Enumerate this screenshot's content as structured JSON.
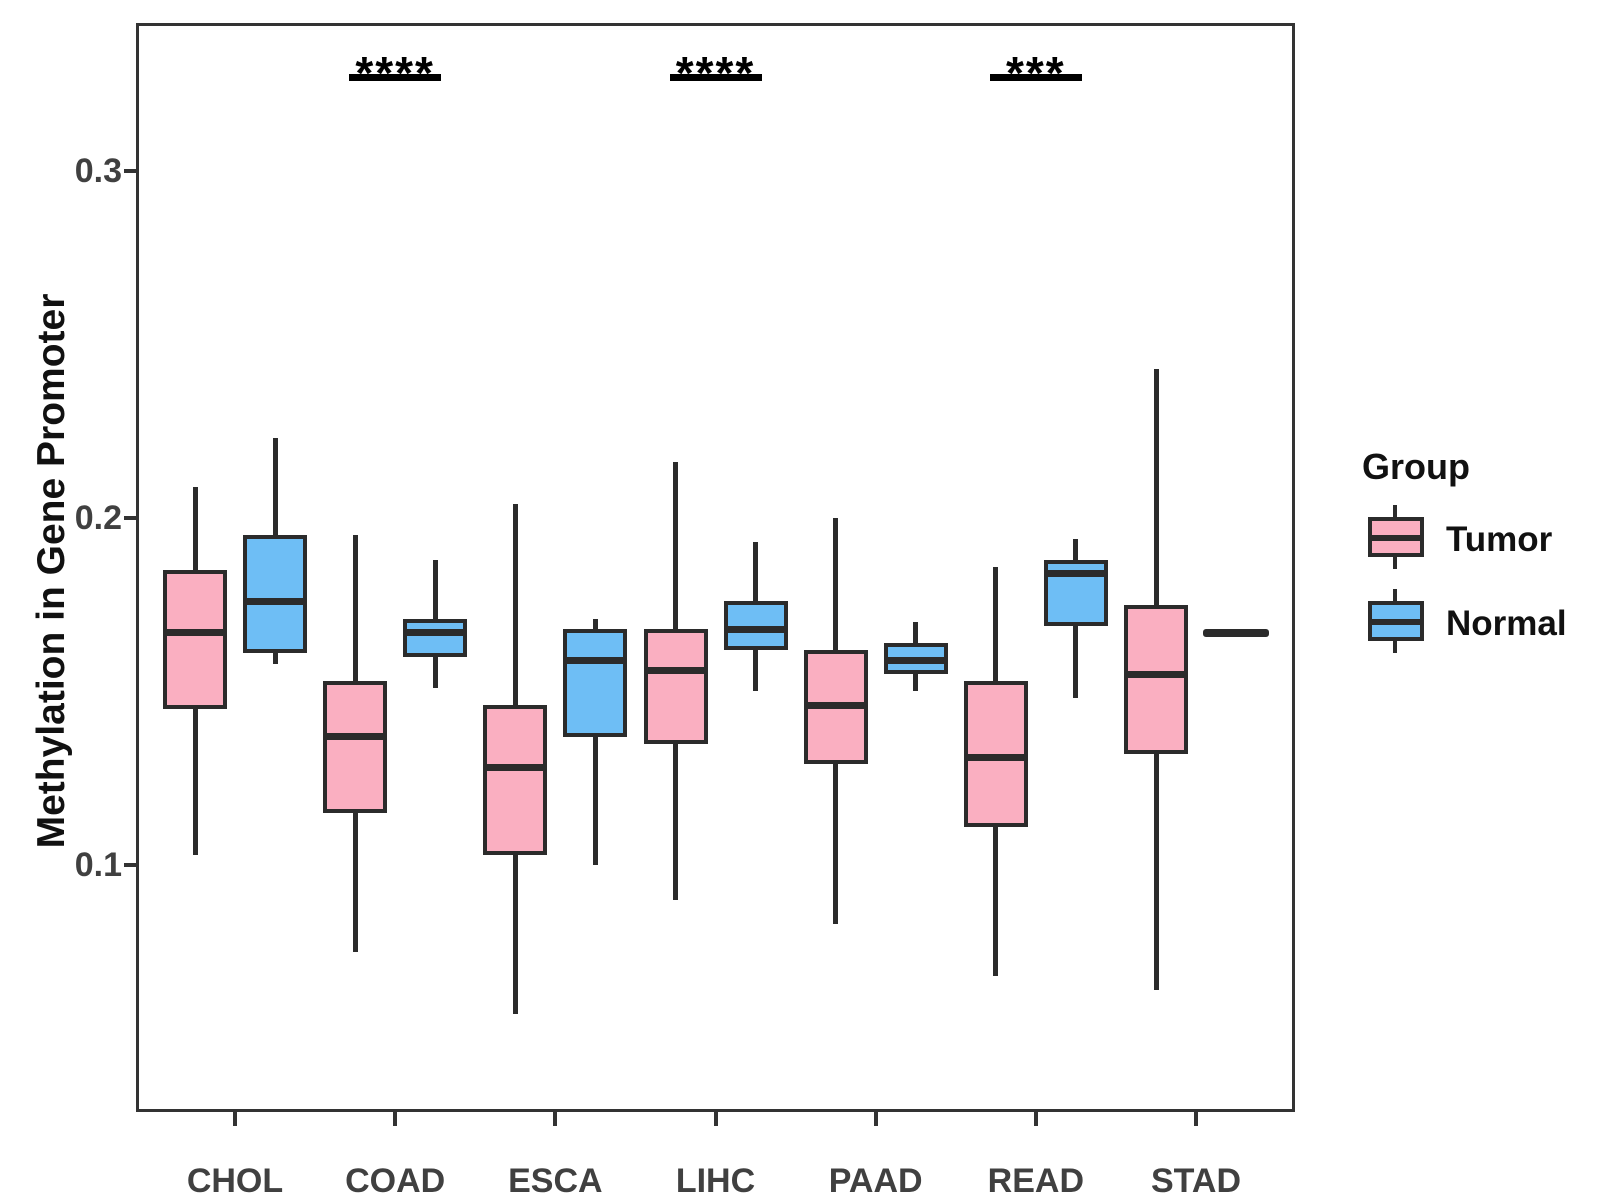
{
  "y_axis": {
    "title": "Methylation in Gene Promoter",
    "tick_labels": [
      "0.1",
      "0.2",
      "0.3"
    ]
  },
  "x_axis": {
    "categories": [
      "CHOL",
      "COAD",
      "ESCA",
      "LIHC",
      "PAAD",
      "READ",
      "STAD"
    ]
  },
  "legend": {
    "title": "Group",
    "items": [
      {
        "label": "Tumor",
        "color": "#FAAFC1"
      },
      {
        "label": "Normal",
        "color": "#6EBEF5"
      }
    ]
  },
  "annotations": [
    {
      "category": "COAD",
      "stars": "****"
    },
    {
      "category": "LIHC",
      "stars": "****"
    },
    {
      "category": "READ",
      "stars": "***"
    }
  ],
  "chart_data": {
    "type": "boxplot",
    "title": "",
    "xlabel": "",
    "ylabel": "Methylation in Gene Promoter",
    "categories": [
      "CHOL",
      "COAD",
      "ESCA",
      "LIHC",
      "PAAD",
      "READ",
      "STAD"
    ],
    "ylim": [
      0.03,
      0.342
    ],
    "yticks": [
      0.1,
      0.2,
      0.3
    ],
    "grid": false,
    "legend_position": "right",
    "series": [
      {
        "name": "Tumor",
        "color": "#FAAFC1",
        "boxes": [
          {
            "category": "CHOL",
            "low": 0.103,
            "q1": 0.145,
            "median": 0.167,
            "q3": 0.185,
            "high": 0.209
          },
          {
            "category": "COAD",
            "low": 0.075,
            "q1": 0.115,
            "median": 0.137,
            "q3": 0.153,
            "high": 0.195
          },
          {
            "category": "ESCA",
            "low": 0.057,
            "q1": 0.103,
            "median": 0.128,
            "q3": 0.146,
            "high": 0.204
          },
          {
            "category": "LIHC",
            "low": 0.09,
            "q1": 0.135,
            "median": 0.156,
            "q3": 0.168,
            "high": 0.216
          },
          {
            "category": "PAAD",
            "low": 0.083,
            "q1": 0.129,
            "median": 0.146,
            "q3": 0.162,
            "high": 0.2
          },
          {
            "category": "READ",
            "low": 0.068,
            "q1": 0.111,
            "median": 0.131,
            "q3": 0.153,
            "high": 0.186
          },
          {
            "category": "STAD",
            "low": 0.064,
            "q1": 0.132,
            "median": 0.155,
            "q3": 0.175,
            "high": 0.243
          }
        ]
      },
      {
        "name": "Normal",
        "color": "#6EBEF5",
        "boxes": [
          {
            "category": "CHOL",
            "low": 0.158,
            "q1": 0.161,
            "median": 0.176,
            "q3": 0.195,
            "high": 0.223
          },
          {
            "category": "COAD",
            "low": 0.151,
            "q1": 0.16,
            "median": 0.167,
            "q3": 0.171,
            "high": 0.188
          },
          {
            "category": "ESCA",
            "low": 0.1,
            "q1": 0.137,
            "median": 0.159,
            "q3": 0.168,
            "high": 0.171
          },
          {
            "category": "LIHC",
            "low": 0.15,
            "q1": 0.162,
            "median": 0.168,
            "q3": 0.176,
            "high": 0.193
          },
          {
            "category": "PAAD",
            "low": 0.15,
            "q1": 0.155,
            "median": 0.159,
            "q3": 0.164,
            "high": 0.17
          },
          {
            "category": "READ",
            "low": 0.148,
            "q1": 0.169,
            "median": 0.184,
            "q3": 0.188,
            "high": 0.194
          },
          {
            "category": "STAD",
            "single_value": 0.167
          }
        ]
      }
    ],
    "significance": [
      {
        "category": "COAD",
        "stars": "****"
      },
      {
        "category": "LIHC",
        "stars": "****"
      },
      {
        "category": "READ",
        "stars": "***"
      }
    ]
  }
}
